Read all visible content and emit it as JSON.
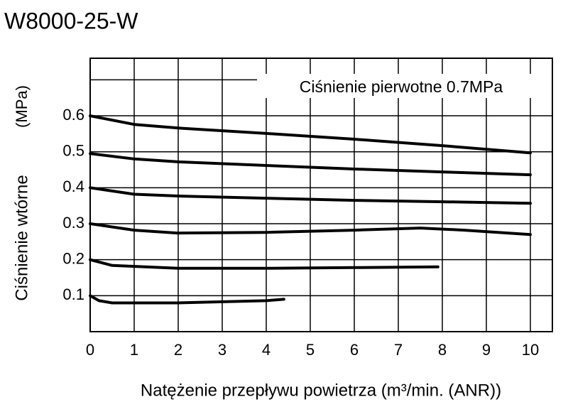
{
  "chart_data": {
    "type": "line",
    "title": "W8000-25-W",
    "annotation": "Ciśnienie pierwotne 0.7MPa",
    "x_label": "Natężenie przepływu powietrza (m³/min. (ANR))",
    "y_label": "Ciśnienie wtórne",
    "y_unit": "(MPa)",
    "xlim": [
      0,
      10.5
    ],
    "xticks": [
      0,
      1,
      2,
      3,
      4,
      5,
      6,
      7,
      8,
      9,
      10
    ],
    "ylim": [
      0,
      0.76
    ],
    "yticks": [
      {
        "value": 0,
        "label": null
      },
      0.1,
      0.2,
      0.3,
      0.4,
      0.5,
      0.6,
      {
        "value": 0.7,
        "label": null
      }
    ],
    "grid": true,
    "series": [
      {
        "color": "#000000",
        "x": [
          0,
          1,
          2,
          4,
          6,
          8,
          10
        ],
        "values": [
          0.6,
          0.576,
          0.566,
          0.551,
          0.535,
          0.517,
          0.497
        ]
      },
      {
        "color": "#000000",
        "x": [
          0,
          1,
          2,
          4,
          6,
          8,
          10
        ],
        "values": [
          0.495,
          0.48,
          0.472,
          0.462,
          0.452,
          0.444,
          0.436
        ]
      },
      {
        "color": "#000000",
        "x": [
          0,
          1,
          2,
          4,
          6,
          8,
          10
        ],
        "values": [
          0.4,
          0.382,
          0.377,
          0.371,
          0.365,
          0.361,
          0.357
        ]
      },
      {
        "color": "#000000",
        "x": [
          0,
          1,
          2,
          4,
          6,
          7.5,
          8.5,
          10
        ],
        "values": [
          0.3,
          0.282,
          0.274,
          0.276,
          0.282,
          0.288,
          0.282,
          0.27
        ]
      },
      {
        "color": "#000000",
        "x": [
          0,
          0.5,
          2,
          4,
          6,
          7.9
        ],
        "values": [
          0.2,
          0.184,
          0.176,
          0.176,
          0.178,
          0.18
        ]
      },
      {
        "color": "#000000",
        "x": [
          0,
          0.2,
          0.5,
          2,
          4,
          4.4
        ],
        "values": [
          0.1,
          0.086,
          0.08,
          0.08,
          0.086,
          0.09
        ]
      }
    ]
  }
}
